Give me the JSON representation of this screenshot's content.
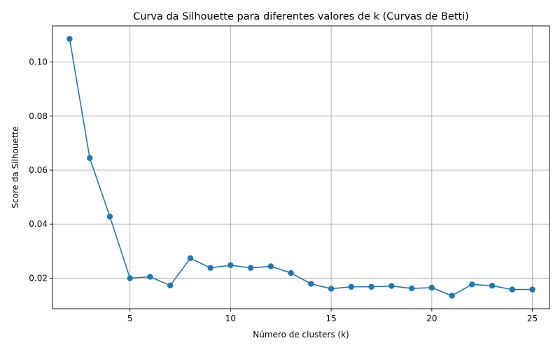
{
  "chart_data": {
    "type": "line",
    "title": "Curva da Silhouette para diferentes valores de k (Curvas de Betti)",
    "xlabel": "Número de clusters (k)",
    "ylabel": "Score da Silhouette",
    "xlim": [
      1.15,
      25.85
    ],
    "ylim": [
      0.0087,
      0.1134
    ],
    "x_ticks": [
      5,
      10,
      15,
      20,
      25
    ],
    "x_tick_labels": [
      "5",
      "10",
      "15",
      "20",
      "25"
    ],
    "y_ticks": [
      0.02,
      0.04,
      0.06,
      0.08,
      0.1
    ],
    "y_tick_labels": [
      "0.02",
      "0.04",
      "0.06",
      "0.08",
      "0.10"
    ],
    "grid": true,
    "line_color": "#1f77b4",
    "marker": "circle",
    "series": [
      {
        "x": [
          2,
          3,
          4,
          5,
          6,
          7,
          8,
          9,
          10,
          11,
          12,
          13,
          14,
          15,
          16,
          17,
          18,
          19,
          20,
          21,
          22,
          23,
          24,
          25
        ],
        "values": [
          0.1086,
          0.0645,
          0.0428,
          0.02,
          0.0205,
          0.0173,
          0.0274,
          0.0238,
          0.0248,
          0.0238,
          0.0244,
          0.0219,
          0.0179,
          0.0161,
          0.0168,
          0.0168,
          0.0171,
          0.0162,
          0.0165,
          0.0135,
          0.0177,
          0.0172,
          0.0158,
          0.0158
        ]
      }
    ]
  }
}
